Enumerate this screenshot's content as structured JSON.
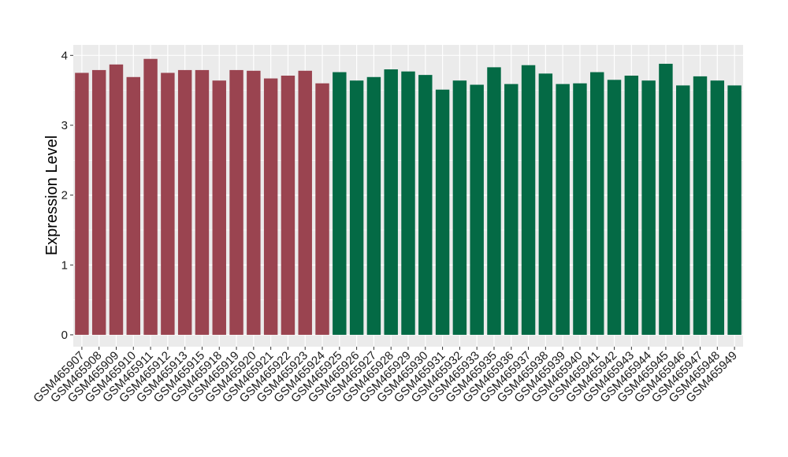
{
  "chart_data": {
    "type": "bar",
    "title": "",
    "xlabel": "",
    "ylabel": "Expression Level",
    "ylim": [
      -0.17,
      4.15
    ],
    "yticks": [
      0,
      1,
      2,
      3,
      4
    ],
    "grid": true,
    "legend": "none",
    "background": "#ebebeb",
    "gridline_color": "#ffffff",
    "series": [
      {
        "color": "#9a4450",
        "categories": [
          "GSM465907",
          "GSM465908",
          "GSM465909",
          "GSM465910",
          "GSM465911",
          "GSM465912",
          "GSM465913",
          "GSM465915",
          "GSM465918",
          "GSM465919",
          "GSM465920",
          "GSM465921",
          "GSM465922",
          "GSM465923",
          "GSM465924"
        ],
        "values": [
          3.75,
          3.79,
          3.87,
          3.69,
          3.95,
          3.75,
          3.79,
          3.79,
          3.64,
          3.79,
          3.78,
          3.67,
          3.71,
          3.78,
          3.6
        ]
      },
      {
        "color": "#046a45",
        "categories": [
          "GSM465925",
          "GSM465926",
          "GSM465927",
          "GSM465928",
          "GSM465929",
          "GSM465930",
          "GSM465931",
          "GSM465932",
          "GSM465933",
          "GSM465935",
          "GSM465936",
          "GSM465937",
          "GSM465938",
          "GSM465939",
          "GSM465940",
          "GSM465941",
          "GSM465942",
          "GSM465943",
          "GSM465944",
          "GSM465945",
          "GSM465946",
          "GSM465947",
          "GSM465948",
          "GSM465949"
        ],
        "values": [
          3.76,
          3.64,
          3.69,
          3.8,
          3.77,
          3.72,
          3.51,
          3.64,
          3.58,
          3.83,
          3.59,
          3.86,
          3.74,
          3.59,
          3.6,
          3.76,
          3.65,
          3.71,
          3.64,
          3.88,
          3.57,
          3.7,
          3.64,
          3.57
        ]
      }
    ]
  }
}
